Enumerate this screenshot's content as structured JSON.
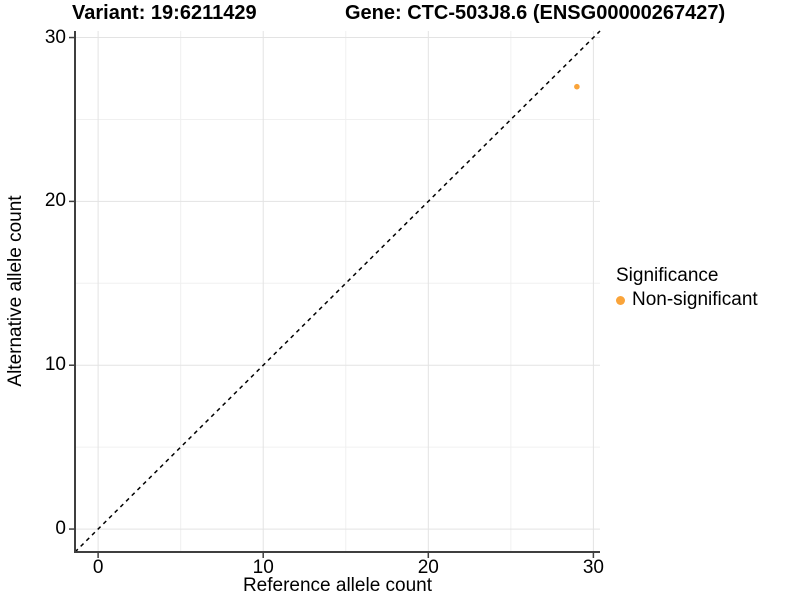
{
  "chart_data": {
    "type": "scatter",
    "titles": {
      "left": "Variant: 19:6211429",
      "right": "Gene: CTC-503J8.6 (ENSG00000267427)"
    },
    "xlabel": "Reference allele count",
    "ylabel": "Alternative allele count",
    "xlim": [
      -1.4,
      30.4
    ],
    "ylim": [
      -1.4,
      30.4
    ],
    "x_major_ticks": [
      0,
      10,
      20,
      30
    ],
    "y_major_ticks": [
      0,
      10,
      20,
      30
    ],
    "x_minor_ticks": [
      5,
      15,
      25
    ],
    "y_minor_ticks": [
      5,
      15,
      25
    ],
    "grid": true,
    "identity_line": {
      "slope": 1,
      "intercept": 0,
      "style": "dashed",
      "color": "#000000"
    },
    "series": [
      {
        "name": "Non-significant",
        "color": "#FAA43A",
        "points": [
          {
            "x": 29,
            "y": 27
          }
        ]
      }
    ],
    "legend": {
      "title": "Significance",
      "position": "right",
      "items": [
        {
          "label": "Non-significant",
          "color": "#FAA43A"
        }
      ]
    },
    "style_colors": {
      "major_grid": "#e3e3e3",
      "minor_grid": "#f0f0f0",
      "axis_line": "#3f3f3f",
      "text": "#000000"
    }
  }
}
